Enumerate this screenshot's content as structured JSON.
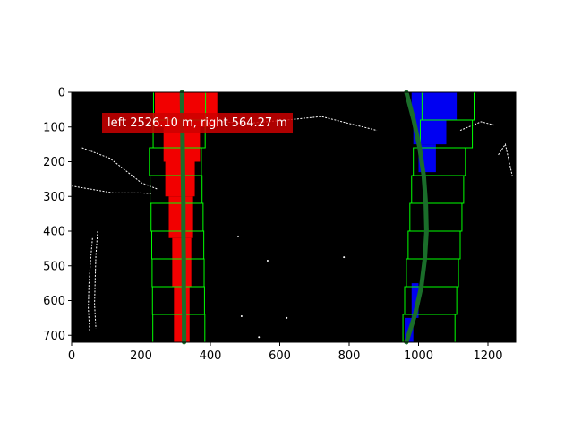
{
  "chart_data": {
    "type": "scatter",
    "title": "",
    "xlabel": "",
    "ylabel": "",
    "xlim": [
      0,
      1280
    ],
    "ylim": [
      720,
      0
    ],
    "x_ticks": [
      0,
      200,
      400,
      600,
      800,
      1000,
      1200
    ],
    "y_ticks": [
      0,
      100,
      200,
      300,
      400,
      500,
      600,
      700
    ],
    "grid": false,
    "legend": "none",
    "annotation": "left 2526.10 m,  right 564.27 m",
    "colors": {
      "left_lane_pixels": "#ff0000",
      "right_lane_pixels": "#0000ff",
      "sliding_windows": "#00ff00",
      "fitted_lines": "#1a6e2a",
      "edges": "#ffffff",
      "background": "#000000",
      "annotation_box": "#cc0000"
    },
    "sliding_windows": {
      "left": [
        {
          "x1": 236,
          "y1": 0,
          "x2": 386,
          "y2": 80
        },
        {
          "x1": 235,
          "y1": 80,
          "x2": 385,
          "y2": 160
        },
        {
          "x1": 224,
          "y1": 160,
          "x2": 374,
          "y2": 240
        },
        {
          "x1": 226,
          "y1": 240,
          "x2": 376,
          "y2": 320
        },
        {
          "x1": 229,
          "y1": 320,
          "x2": 379,
          "y2": 400
        },
        {
          "x1": 231,
          "y1": 400,
          "x2": 381,
          "y2": 480
        },
        {
          "x1": 232,
          "y1": 480,
          "x2": 382,
          "y2": 560
        },
        {
          "x1": 233,
          "y1": 560,
          "x2": 383,
          "y2": 640
        },
        {
          "x1": 234,
          "y1": 640,
          "x2": 384,
          "y2": 720
        }
      ],
      "right": [
        {
          "x1": 1010,
          "y1": 0,
          "x2": 1160,
          "y2": 80
        },
        {
          "x1": 1005,
          "y1": 80,
          "x2": 1155,
          "y2": 160
        },
        {
          "x1": 985,
          "y1": 160,
          "x2": 1135,
          "y2": 240
        },
        {
          "x1": 980,
          "y1": 240,
          "x2": 1130,
          "y2": 320
        },
        {
          "x1": 975,
          "y1": 320,
          "x2": 1125,
          "y2": 400
        },
        {
          "x1": 970,
          "y1": 400,
          "x2": 1120,
          "y2": 480
        },
        {
          "x1": 965,
          "y1": 480,
          "x2": 1115,
          "y2": 560
        },
        {
          "x1": 960,
          "y1": 560,
          "x2": 1110,
          "y2": 640
        },
        {
          "x1": 955,
          "y1": 640,
          "x2": 1105,
          "y2": 720
        }
      ]
    },
    "left_fit": {
      "y": [
        0,
        80,
        160,
        240,
        320,
        400,
        480,
        560,
        640,
        720
      ],
      "x": [
        318,
        319,
        320,
        321,
        322,
        322,
        323,
        323,
        324,
        324
      ]
    },
    "right_fit": {
      "y": [
        0,
        80,
        160,
        240,
        320,
        400,
        480,
        560,
        640,
        720
      ],
      "x": [
        965,
        986,
        1003,
        1015,
        1021,
        1023,
        1018,
        1008,
        990,
        965
      ]
    },
    "left_pixels": [
      {
        "x1": 240,
        "y1": 0,
        "x2": 420,
        "y2": 100
      },
      {
        "x1": 265,
        "y1": 100,
        "x2": 370,
        "y2": 200
      },
      {
        "x1": 270,
        "y1": 200,
        "x2": 355,
        "y2": 300
      },
      {
        "x1": 280,
        "y1": 300,
        "x2": 350,
        "y2": 420
      },
      {
        "x1": 290,
        "y1": 420,
        "x2": 345,
        "y2": 560
      },
      {
        "x1": 295,
        "y1": 560,
        "x2": 340,
        "y2": 720
      }
    ],
    "right_pixels": [
      {
        "x1": 980,
        "y1": 0,
        "x2": 1110,
        "y2": 80
      },
      {
        "x1": 985,
        "y1": 80,
        "x2": 1080,
        "y2": 150
      },
      {
        "x1": 1000,
        "y1": 150,
        "x2": 1050,
        "y2": 230
      },
      {
        "x1": 980,
        "y1": 550,
        "x2": 1000,
        "y2": 650
      },
      {
        "x1": 960,
        "y1": 650,
        "x2": 985,
        "y2": 720
      }
    ],
    "edge_segments": [
      {
        "x": [
          30,
          110,
          200,
          250
        ],
        "y": [
          160,
          190,
          260,
          280
        ]
      },
      {
        "x": [
          0,
          60,
          120,
          200,
          230
        ],
        "y": [
          270,
          280,
          290,
          290,
          292
        ]
      },
      {
        "x": [
          60,
          55,
          50,
          48,
          52
        ],
        "y": [
          420,
          480,
          550,
          620,
          690
        ]
      },
      {
        "x": [
          75,
          70,
          68,
          66,
          70
        ],
        "y": [
          400,
          470,
          540,
          610,
          680
        ]
      },
      {
        "x": [
          380,
          500,
          620,
          720,
          820,
          880
        ],
        "y": [
          80,
          90,
          80,
          70,
          95,
          110
        ]
      },
      {
        "x": [
          1120,
          1180,
          1220
        ],
        "y": [
          110,
          85,
          95
        ]
      },
      {
        "x": [
          1230,
          1250,
          1270
        ],
        "y": [
          180,
          150,
          240
        ]
      }
    ],
    "edge_dots": [
      {
        "x": 480,
        "y": 415
      },
      {
        "x": 565,
        "y": 485
      },
      {
        "x": 785,
        "y": 475
      },
      {
        "x": 620,
        "y": 650
      },
      {
        "x": 540,
        "y": 705
      },
      {
        "x": 490,
        "y": 645
      }
    ]
  }
}
